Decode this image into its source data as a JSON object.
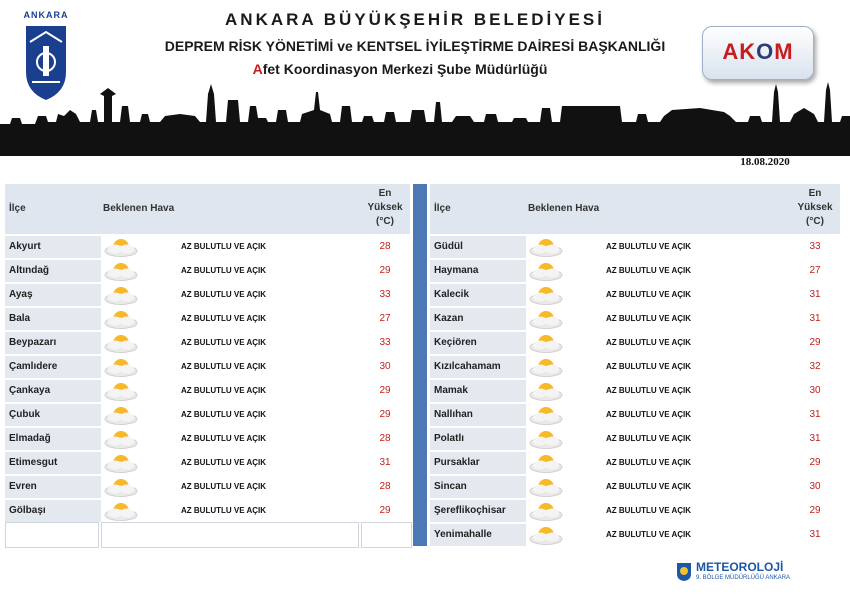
{
  "header": {
    "logo_label": "ANKARA",
    "title_line1": "ANKARA BÜYÜKŞEHİR BELEDİYESİ",
    "title_line2": "DEPREM RİSK YÖNETİMİ ve KENTSEL İYİLEŞTİRME DAİRESİ BAŞKANLIĞI",
    "title_line3_first": "A",
    "title_line3_rest": "fet Koordinasyon Merkezi Şube Müdürlüğü",
    "akom_logo": [
      "AK",
      "O",
      "M"
    ],
    "date": "18.08.2020"
  },
  "columns": {
    "ilce": "İlçe",
    "hava": "Beklenen Hava",
    "max_line1": "En",
    "max_line2": "Yüksek",
    "max_line3": "(°C)"
  },
  "icon": "partly-cloudy-icon",
  "left_rows": [
    {
      "ilce": "Akyurt",
      "hava": "AZ BULUTLU VE AÇIK",
      "max": "28"
    },
    {
      "ilce": "Altındağ",
      "hava": "AZ BULUTLU VE AÇIK",
      "max": "29"
    },
    {
      "ilce": "Ayaş",
      "hava": "AZ BULUTLU VE AÇIK",
      "max": "33"
    },
    {
      "ilce": "Bala",
      "hava": "AZ BULUTLU VE AÇIK",
      "max": "27"
    },
    {
      "ilce": "Beypazarı",
      "hava": "AZ BULUTLU VE AÇIK",
      "max": "33"
    },
    {
      "ilce": "Çamlıdere",
      "hava": "AZ BULUTLU VE AÇIK",
      "max": "30"
    },
    {
      "ilce": "Çankaya",
      "hava": "AZ BULUTLU VE AÇIK",
      "max": "29"
    },
    {
      "ilce": "Çubuk",
      "hava": "AZ BULUTLU VE AÇIK",
      "max": "29"
    },
    {
      "ilce": "Elmadağ",
      "hava": "AZ BULUTLU VE AÇIK",
      "max": "28"
    },
    {
      "ilce": "Etimesgut",
      "hava": "AZ BULUTLU VE AÇIK",
      "max": "31"
    },
    {
      "ilce": "Evren",
      "hava": "AZ BULUTLU VE AÇIK",
      "max": "28"
    },
    {
      "ilce": "Gölbaşı",
      "hava": "AZ BULUTLU VE AÇIK",
      "max": "29"
    }
  ],
  "right_rows": [
    {
      "ilce": "Güdül",
      "hava": "AZ BULUTLU VE AÇIK",
      "max": "33"
    },
    {
      "ilce": "Haymana",
      "hava": "AZ BULUTLU VE AÇIK",
      "max": "27"
    },
    {
      "ilce": "Kalecik",
      "hava": "AZ BULUTLU VE AÇIK",
      "max": "31"
    },
    {
      "ilce": "Kazan",
      "hava": "AZ BULUTLU VE AÇIK",
      "max": "31"
    },
    {
      "ilce": "Keçiören",
      "hava": "AZ BULUTLU VE AÇIK",
      "max": "29"
    },
    {
      "ilce": "Kızılcahamam",
      "hava": "AZ BULUTLU VE AÇIK",
      "max": "32"
    },
    {
      "ilce": "Mamak",
      "hava": "AZ BULUTLU VE AÇIK",
      "max": "30"
    },
    {
      "ilce": "Nallıhan",
      "hava": "AZ BULUTLU VE AÇIK",
      "max": "31"
    },
    {
      "ilce": "Polatlı",
      "hava": "AZ BULUTLU VE AÇIK",
      "max": "31"
    },
    {
      "ilce": "Pursaklar",
      "hava": "AZ BULUTLU VE AÇIK",
      "max": "29"
    },
    {
      "ilce": "Sincan",
      "hava": "AZ BULUTLU VE AÇIK",
      "max": "30"
    },
    {
      "ilce": "Şereflikoçhisar",
      "hava": "AZ BULUTLU VE AÇIK",
      "max": "29"
    },
    {
      "ilce": "Yenimahalle",
      "hava": "AZ BULUTLU VE AÇIK",
      "max": "31"
    }
  ],
  "footer": {
    "meteo_title": "METEOROLOJİ",
    "meteo_sub": "9. BÖLGE MÜDÜRLÜĞÜ  ANKARA"
  },
  "colors": {
    "accent_red": "#c41e1e",
    "divider_blue": "#4c78b6",
    "header_bg": "#dfe6ef"
  }
}
